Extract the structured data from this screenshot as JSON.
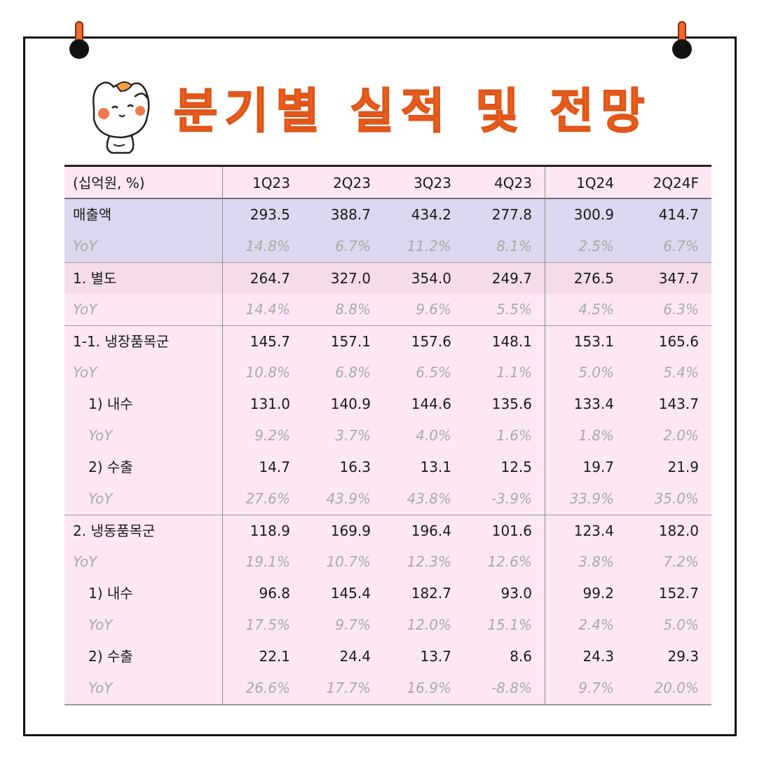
{
  "title": "분기별 실적 및 전망",
  "colors": {
    "title": "#f26b21",
    "sales_band": "#ddd7ef",
    "table_bg": "#fde7f4"
  },
  "icons": {
    "mascot": "cat-mascot-icon",
    "pins": "pushpin-icon"
  },
  "table": {
    "unit": "(십억원, %)",
    "columns": [
      "1Q23",
      "2Q23",
      "3Q23",
      "4Q23",
      "1Q24",
      "2Q24F"
    ],
    "rows": [
      {
        "label": "매출액",
        "values": [
          "293.5",
          "388.7",
          "434.2",
          "277.8",
          "300.9",
          "414.7"
        ]
      },
      {
        "label": "YoY",
        "values": [
          "14.8%",
          "6.7%",
          "11.2%",
          "8.1%",
          "2.5%",
          "6.7%"
        ]
      },
      {
        "label": "1. 별도",
        "values": [
          "264.7",
          "327.0",
          "354.0",
          "249.7",
          "276.5",
          "347.7"
        ]
      },
      {
        "label": "YoY",
        "values": [
          "14.4%",
          "8.8%",
          "9.6%",
          "5.5%",
          "4.5%",
          "6.3%"
        ]
      },
      {
        "label": "1-1. 냉장품목군",
        "values": [
          "145.7",
          "157.1",
          "157.6",
          "148.1",
          "153.1",
          "165.6"
        ]
      },
      {
        "label": "YoY",
        "values": [
          "10.8%",
          "6.8%",
          "6.5%",
          "1.1%",
          "5.0%",
          "5.4%"
        ]
      },
      {
        "label": "1) 내수",
        "values": [
          "131.0",
          "140.9",
          "144.6",
          "135.6",
          "133.4",
          "143.7"
        ]
      },
      {
        "label": "YoY",
        "values": [
          "9.2%",
          "3.7%",
          "4.0%",
          "1.6%",
          "1.8%",
          "2.0%"
        ]
      },
      {
        "label": "2) 수출",
        "values": [
          "14.7",
          "16.3",
          "13.1",
          "12.5",
          "19.7",
          "21.9"
        ]
      },
      {
        "label": "YoY",
        "values": [
          "27.6%",
          "43.9%",
          "43.8%",
          "-3.9%",
          "33.9%",
          "35.0%"
        ]
      },
      {
        "label": "2. 냉동품목군",
        "values": [
          "118.9",
          "169.9",
          "196.4",
          "101.6",
          "123.4",
          "182.0"
        ]
      },
      {
        "label": "YoY",
        "values": [
          "19.1%",
          "10.7%",
          "12.3%",
          "12.6%",
          "3.8%",
          "7.2%"
        ]
      },
      {
        "label": "1) 내수",
        "values": [
          "96.8",
          "145.4",
          "182.7",
          "93.0",
          "99.2",
          "152.7"
        ]
      },
      {
        "label": "YoY",
        "values": [
          "17.5%",
          "9.7%",
          "12.0%",
          "15.1%",
          "2.4%",
          "5.0%"
        ]
      },
      {
        "label": "2) 수출",
        "values": [
          "22.1",
          "24.4",
          "13.7",
          "8.6",
          "24.3",
          "29.3"
        ]
      },
      {
        "label": "YoY",
        "values": [
          "26.6%",
          "17.7%",
          "16.9%",
          "-8.8%",
          "9.7%",
          "20.0%"
        ]
      }
    ]
  }
}
